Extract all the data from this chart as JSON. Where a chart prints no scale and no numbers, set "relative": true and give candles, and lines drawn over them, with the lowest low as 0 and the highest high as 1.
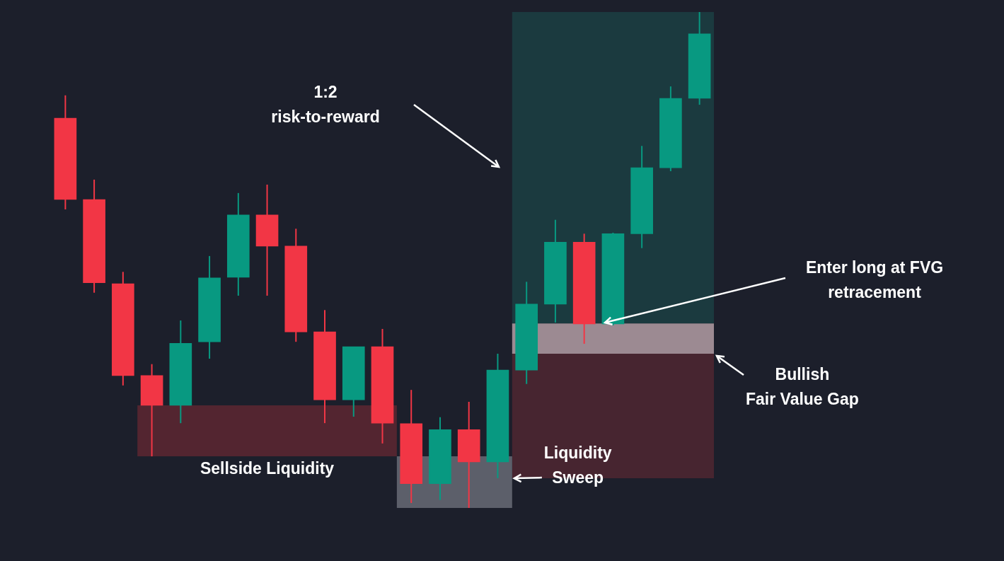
{
  "chart_data": {
    "type": "candlestick",
    "relative": true,
    "categories": [
      null,
      null,
      null,
      null,
      null,
      null,
      null,
      null,
      null,
      null,
      null,
      null,
      null,
      null,
      null,
      null,
      null,
      null,
      null,
      null,
      null,
      null,
      null
    ],
    "ohlc": [
      [
        0.786,
        0.832,
        0.602,
        0.622
      ],
      [
        0.622,
        0.662,
        0.434,
        0.454
      ],
      [
        0.452,
        0.476,
        0.247,
        0.267
      ],
      [
        0.267,
        0.29,
        0.104,
        0.207
      ],
      [
        0.207,
        0.378,
        0.171,
        0.332
      ],
      [
        0.335,
        0.508,
        0.301,
        0.464
      ],
      [
        0.465,
        0.635,
        0.428,
        0.591
      ],
      [
        0.591,
        0.652,
        0.428,
        0.528
      ],
      [
        0.528,
        0.563,
        0.335,
        0.355
      ],
      [
        0.355,
        0.399,
        0.171,
        0.218
      ],
      [
        0.218,
        0.325,
        0.184,
        0.325
      ],
      [
        0.325,
        0.361,
        0.13,
        0.171
      ],
      [
        0.17,
        0.238,
        0.01,
        0.049
      ],
      [
        0.049,
        0.183,
        0.016,
        0.158
      ],
      [
        0.158,
        0.214,
        0,
        0.093
      ],
      [
        0.093,
        0.311,
        0.06,
        0.278
      ],
      [
        0.278,
        0.456,
        0.25,
        0.411
      ],
      [
        0.411,
        0.581,
        0.374,
        0.536
      ],
      [
        0.536,
        0.553,
        0.331,
        0.371
      ],
      [
        0.371,
        0.555,
        0.368,
        0.553
      ],
      [
        0.553,
        0.73,
        0.524,
        0.686
      ],
      [
        0.686,
        0.85,
        0.679,
        0.826
      ],
      [
        0.826,
        1,
        0.813,
        0.956
      ]
    ],
    "colors": [
      "#f23645",
      "#f23645",
      "#f23645",
      "#f23645",
      "#089981",
      "#089981",
      "#089981",
      "#f23645",
      "#f23645",
      "#f23645",
      "#089981",
      "#f23645",
      "#f23645",
      "#089981",
      "#f23645",
      "#089981",
      "#089981",
      "#089981",
      "#f23645",
      "#089981",
      "#089981",
      "#089981",
      "#089981"
    ],
    "bands": [
      {
        "axis": "y",
        "from": 0.372,
        "to": 1,
        "color": "#1b3a3f"
      },
      {
        "axis": "y",
        "from": 0.06,
        "to": 0.311,
        "color": "#472530"
      },
      {
        "axis": "y",
        "from": 0.311,
        "to": 0.372,
        "color": "#9c8a92",
        "label": "Bullish\nFair Value Gap"
      },
      {
        "axis": "y",
        "from": 0.104,
        "to": 0.207,
        "color": "#532530",
        "label": "Sellside Liquidity"
      },
      {
        "axis": "y",
        "from": 0,
        "to": 0.104,
        "color": "#5c5f6a",
        "label": "Liquidity\nSweep"
      }
    ],
    "annotations": [
      "1:2\nrisk-to-reward",
      "Enter long at FVG\nretracement"
    ]
  }
}
